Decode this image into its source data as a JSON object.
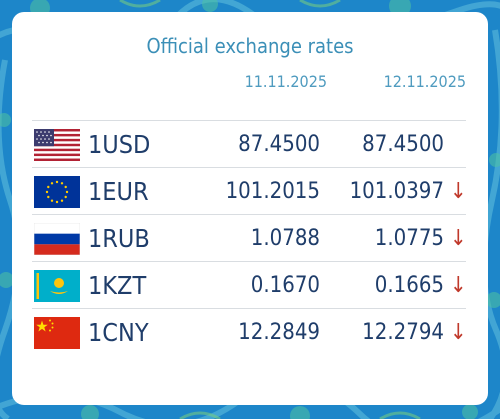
{
  "header": {
    "title": "Official exchange rates",
    "date1": "11.11.2025",
    "date2": "12.11.2025"
  },
  "colors": {
    "accent": "#3b8fb7",
    "text": "#1f3d6a",
    "down_arrow": "#c0392b",
    "background": "#1d86c9"
  },
  "rates": [
    {
      "flag_icon": "usa-flag-icon",
      "code": "1USD",
      "rate1": "87.4500",
      "rate2": "87.4500",
      "change": ""
    },
    {
      "flag_icon": "eu-flag-icon",
      "code": "1EUR",
      "rate1": "101.2015",
      "rate2": "101.0397",
      "change": "↓"
    },
    {
      "flag_icon": "russia-flag-icon",
      "code": "1RUB",
      "rate1": "1.0788",
      "rate2": "1.0775",
      "change": "↓"
    },
    {
      "flag_icon": "kazakhstan-flag-icon",
      "code": "1KZT",
      "rate1": "0.1670",
      "rate2": "0.1665",
      "change": "↓"
    },
    {
      "flag_icon": "china-flag-icon",
      "code": "1CNY",
      "rate1": "12.2849",
      "rate2": "12.2794",
      "change": "↓"
    }
  ]
}
